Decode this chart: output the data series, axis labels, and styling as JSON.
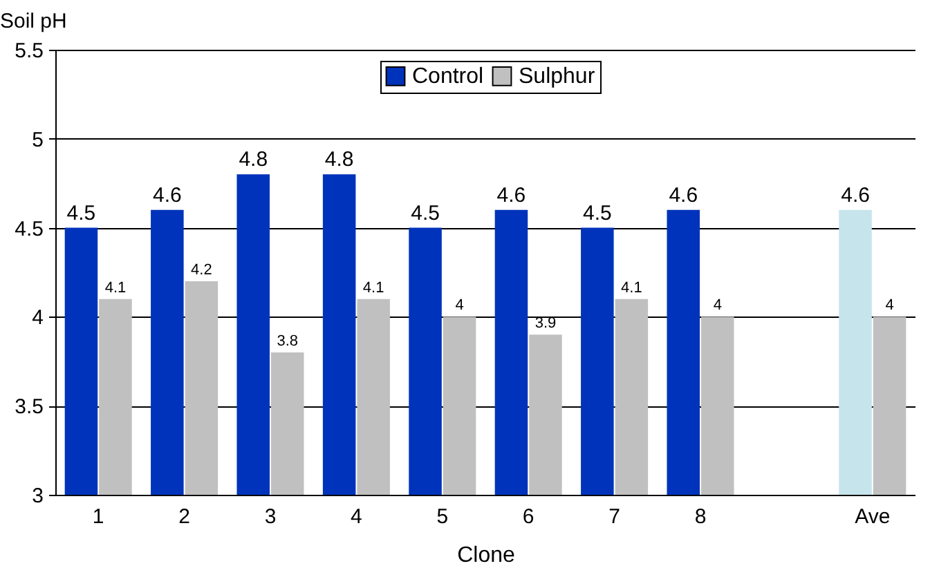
{
  "chart_data": {
    "type": "bar",
    "categories": [
      "1",
      "2",
      "3",
      "4",
      "5",
      "6",
      "7",
      "8",
      null,
      "Ave"
    ],
    "series": [
      {
        "name": "Control",
        "color": "#0033bb",
        "colors": [
          "#0033bb",
          "#0033bb",
          "#0033bb",
          "#0033bb",
          "#0033bb",
          "#0033bb",
          "#0033bb",
          "#0033bb",
          null,
          "#c6e4ec"
        ],
        "values": [
          4.5,
          4.6,
          4.8,
          4.8,
          4.5,
          4.6,
          4.5,
          4.6,
          null,
          4.6
        ]
      },
      {
        "name": "Sulphur",
        "color": "#c0c0c0",
        "values": [
          4.1,
          4.2,
          3.8,
          4.1,
          4,
          3.9,
          4.1,
          4,
          null,
          4
        ]
      }
    ],
    "xlabel": "Clone",
    "ylabel": "Soil pH",
    "ylim": [
      3,
      5.5
    ],
    "yticks": [
      3,
      3.5,
      4,
      4.5,
      5,
      5.5
    ],
    "grid": "y",
    "legend": "top",
    "data_labels": true
  }
}
